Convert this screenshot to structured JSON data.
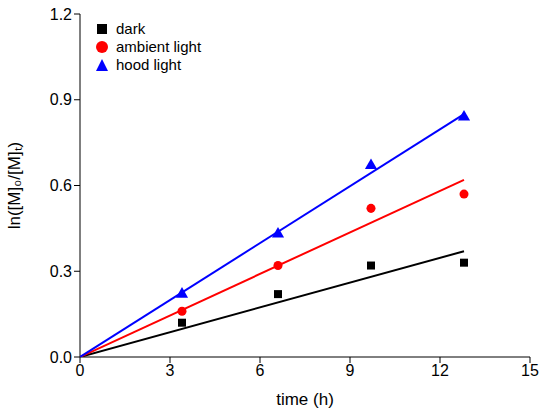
{
  "chart_data": {
    "type": "scatter",
    "x_label": "time (h)",
    "y_label": "ln([M]₀/[M]ₜ)",
    "xlim": [
      0,
      15
    ],
    "xticks": [
      0,
      3,
      6,
      9,
      12,
      15
    ],
    "ylim": [
      0,
      1.2
    ],
    "yticks": [
      {
        "value": 0,
        "label": "0.0"
      },
      0.3,
      0.6,
      0.9,
      1.2
    ],
    "legend": "upper left",
    "grid": false,
    "series": [
      {
        "name": "dark",
        "color": "#000000",
        "marker": "square",
        "x": [
          3.4,
          6.6,
          9.7,
          12.8
        ],
        "values": [
          0.12,
          0.22,
          0.32,
          0.33
        ],
        "fit": {
          "x": [
            0,
            12.8
          ],
          "values": [
            0,
            0.37
          ]
        }
      },
      {
        "name": "ambient light",
        "color": "#ff0000",
        "marker": "circle",
        "x": [
          3.4,
          6.6,
          9.7,
          12.8
        ],
        "values": [
          0.16,
          0.32,
          0.52,
          0.57
        ],
        "fit": {
          "x": [
            0,
            12.8
          ],
          "values": [
            0,
            0.62
          ]
        }
      },
      {
        "name": "hood light",
        "color": "#0000ff",
        "marker": "triangle",
        "x": [
          3.4,
          6.6,
          9.7,
          12.8
        ],
        "values": [
          0.22,
          0.43,
          0.67,
          0.84
        ],
        "fit": {
          "x": [
            0,
            12.8
          ],
          "values": [
            0,
            0.85
          ]
        }
      }
    ]
  }
}
